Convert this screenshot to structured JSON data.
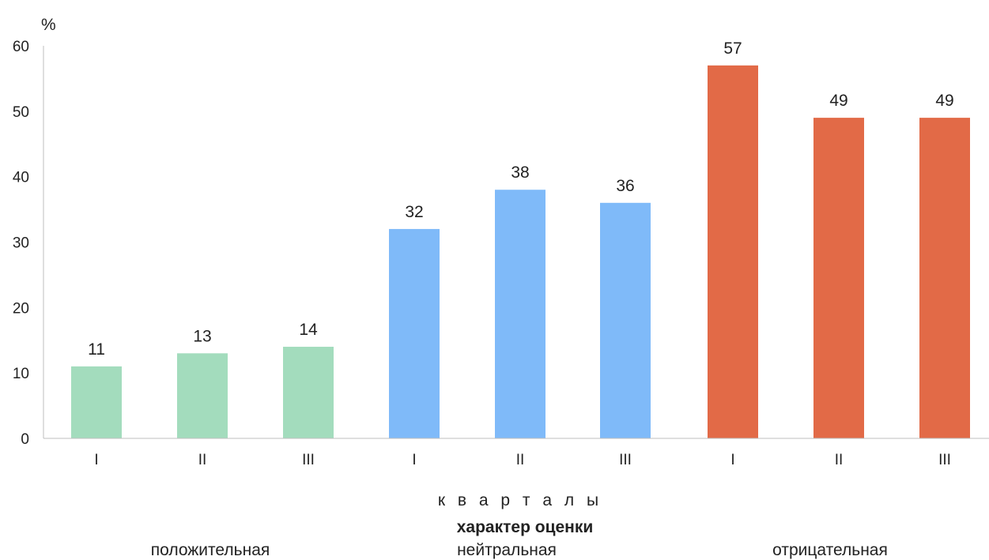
{
  "chart_data": {
    "type": "bar",
    "unit_label": "%",
    "xlabel": "к в а р т а л ы",
    "ylim": [
      0,
      60
    ],
    "yticks": [
      0,
      10,
      20,
      30,
      40,
      50,
      60
    ],
    "grid": false,
    "categories": [
      "I",
      "II",
      "III",
      "I",
      "II",
      "III",
      "I",
      "II",
      "III"
    ],
    "groups": [
      {
        "name": "положительная",
        "color": "#a3dcbd",
        "quarters": [
          "I",
          "II",
          "III"
        ],
        "values": [
          11,
          13,
          14
        ]
      },
      {
        "name": "нейтральная",
        "color": "#7fbaf9",
        "quarters": [
          "I",
          "II",
          "III"
        ],
        "values": [
          32,
          38,
          36
        ]
      },
      {
        "name": "отрицательная",
        "color": "#e26a47",
        "quarters": [
          "I",
          "II",
          "III"
        ],
        "values": [
          57,
          49,
          49
        ]
      }
    ],
    "legend": {
      "title": "характер оценки",
      "placement": "bottom"
    }
  }
}
